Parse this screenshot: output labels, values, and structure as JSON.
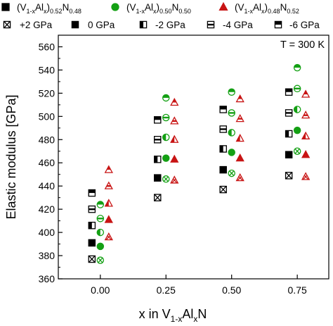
{
  "chart_data": {
    "type": "scatter",
    "xlabel": {
      "main": "x in V",
      "sub1": "1-x",
      "mid": "Al",
      "sub2": "x",
      "tail": "N"
    },
    "ylabel": "Elastic modulus [GPa]",
    "xlim": [
      -0.16,
      0.87
    ],
    "ylim": [
      360,
      570
    ],
    "xticks": [
      "0.00",
      "0.25",
      "0.50",
      "0.75"
    ],
    "xtick_values": [
      0.0,
      0.25,
      0.5,
      0.75
    ],
    "yticks": [
      360,
      380,
      400,
      420,
      440,
      460,
      480,
      500,
      520,
      540,
      560
    ],
    "grid": false,
    "annotation": "T = 300 K",
    "compositions": [
      {
        "name": {
          "pre": "(V",
          "s1": "1-x",
          "mid": "Al",
          "s2": "x",
          "post": ")",
          "s3": "0.52",
          "n": "N",
          "s4": "0.48"
        },
        "marker": "square",
        "color": "#000000"
      },
      {
        "name": {
          "pre": "(V",
          "s1": "1-x",
          "mid": "Al",
          "s2": "x",
          "post": ")",
          "s3": "0.50",
          "n": "N",
          "s4": "0.50"
        },
        "marker": "circle",
        "color": "#14a014"
      },
      {
        "name": {
          "pre": "(V",
          "s1": "1-x",
          "mid": "Al",
          "s2": "x",
          "post": ")",
          "s3": "0.48",
          "n": "N",
          "s4": "0.52"
        },
        "marker": "triangle",
        "color": "#c81414"
      }
    ],
    "pressures": [
      {
        "label": "+2 GPa",
        "fill": "cross"
      },
      {
        "label": "0 GPa",
        "fill": "full"
      },
      {
        "label": "-2 GPa",
        "fill": "left"
      },
      {
        "label": "-4 GPa",
        "fill": "bar"
      },
      {
        "label": "-6 GPa",
        "fill": "top"
      }
    ],
    "series": [
      {
        "x": 0.0,
        "composition": 0,
        "pressure": 0,
        "y": 377
      },
      {
        "x": 0.0,
        "composition": 0,
        "pressure": 1,
        "y": 391
      },
      {
        "x": 0.0,
        "composition": 0,
        "pressure": 2,
        "y": 406
      },
      {
        "x": 0.0,
        "composition": 0,
        "pressure": 3,
        "y": 420
      },
      {
        "x": 0.0,
        "composition": 0,
        "pressure": 4,
        "y": 434
      },
      {
        "x": 0.0,
        "composition": 1,
        "pressure": 0,
        "y": 376
      },
      {
        "x": 0.0,
        "composition": 1,
        "pressure": 1,
        "y": 388
      },
      {
        "x": 0.0,
        "composition": 1,
        "pressure": 2,
        "y": 400
      },
      {
        "x": 0.0,
        "composition": 1,
        "pressure": 3,
        "y": 412
      },
      {
        "x": 0.0,
        "composition": 1,
        "pressure": 4,
        "y": 424
      },
      {
        "x": 0.0,
        "composition": 2,
        "pressure": 0,
        "y": 396
      },
      {
        "x": 0.0,
        "composition": 2,
        "pressure": 1,
        "y": 411
      },
      {
        "x": 0.0,
        "composition": 2,
        "pressure": 2,
        "y": 425
      },
      {
        "x": 0.0,
        "composition": 2,
        "pressure": 3,
        "y": 440
      },
      {
        "x": 0.0,
        "composition": 2,
        "pressure": 4,
        "y": 454
      },
      {
        "x": 0.25,
        "composition": 0,
        "pressure": 0,
        "y": 430
      },
      {
        "x": 0.25,
        "composition": 0,
        "pressure": 1,
        "y": 447
      },
      {
        "x": 0.25,
        "composition": 0,
        "pressure": 2,
        "y": 463
      },
      {
        "x": 0.25,
        "composition": 0,
        "pressure": 3,
        "y": 480
      },
      {
        "x": 0.25,
        "composition": 0,
        "pressure": 4,
        "y": 497
      },
      {
        "x": 0.25,
        "composition": 1,
        "pressure": 0,
        "y": 446
      },
      {
        "x": 0.25,
        "composition": 1,
        "pressure": 1,
        "y": 464
      },
      {
        "x": 0.25,
        "composition": 1,
        "pressure": 2,
        "y": 482
      },
      {
        "x": 0.25,
        "composition": 1,
        "pressure": 3,
        "y": 499
      },
      {
        "x": 0.25,
        "composition": 1,
        "pressure": 4,
        "y": 516
      },
      {
        "x": 0.25,
        "composition": 2,
        "pressure": 0,
        "y": 445
      },
      {
        "x": 0.25,
        "composition": 2,
        "pressure": 1,
        "y": 463
      },
      {
        "x": 0.25,
        "composition": 2,
        "pressure": 2,
        "y": 480
      },
      {
        "x": 0.25,
        "composition": 2,
        "pressure": 3,
        "y": 496
      },
      {
        "x": 0.25,
        "composition": 2,
        "pressure": 4,
        "y": 512
      },
      {
        "x": 0.5,
        "composition": 0,
        "pressure": 0,
        "y": 437
      },
      {
        "x": 0.5,
        "composition": 0,
        "pressure": 1,
        "y": 454
      },
      {
        "x": 0.5,
        "composition": 0,
        "pressure": 2,
        "y": 472
      },
      {
        "x": 0.5,
        "composition": 0,
        "pressure": 3,
        "y": 489
      },
      {
        "x": 0.5,
        "composition": 0,
        "pressure": 4,
        "y": 506
      },
      {
        "x": 0.5,
        "composition": 1,
        "pressure": 0,
        "y": 451
      },
      {
        "x": 0.5,
        "composition": 1,
        "pressure": 1,
        "y": 469
      },
      {
        "x": 0.5,
        "composition": 1,
        "pressure": 2,
        "y": 486
      },
      {
        "x": 0.5,
        "composition": 1,
        "pressure": 3,
        "y": 503
      },
      {
        "x": 0.5,
        "composition": 1,
        "pressure": 4,
        "y": 521
      },
      {
        "x": 0.5,
        "composition": 2,
        "pressure": 0,
        "y": 447
      },
      {
        "x": 0.5,
        "composition": 2,
        "pressure": 1,
        "y": 464
      },
      {
        "x": 0.5,
        "composition": 2,
        "pressure": 2,
        "y": 481
      },
      {
        "x": 0.5,
        "composition": 2,
        "pressure": 3,
        "y": 498
      },
      {
        "x": 0.5,
        "composition": 2,
        "pressure": 4,
        "y": 515
      },
      {
        "x": 0.75,
        "composition": 0,
        "pressure": 0,
        "y": 449
      },
      {
        "x": 0.75,
        "composition": 0,
        "pressure": 1,
        "y": 467
      },
      {
        "x": 0.75,
        "composition": 0,
        "pressure": 2,
        "y": 485
      },
      {
        "x": 0.75,
        "composition": 0,
        "pressure": 3,
        "y": 503
      },
      {
        "x": 0.75,
        "composition": 0,
        "pressure": 4,
        "y": 521
      },
      {
        "x": 0.75,
        "composition": 1,
        "pressure": 0,
        "y": 470
      },
      {
        "x": 0.75,
        "composition": 1,
        "pressure": 1,
        "y": 488
      },
      {
        "x": 0.75,
        "composition": 1,
        "pressure": 2,
        "y": 506
      },
      {
        "x": 0.75,
        "composition": 1,
        "pressure": 3,
        "y": 524
      },
      {
        "x": 0.75,
        "composition": 1,
        "pressure": 4,
        "y": 542
      },
      {
        "x": 0.75,
        "composition": 2,
        "pressure": 0,
        "y": 448
      },
      {
        "x": 0.75,
        "composition": 2,
        "pressure": 1,
        "y": 467
      },
      {
        "x": 0.75,
        "composition": 2,
        "pressure": 2,
        "y": 483
      },
      {
        "x": 0.75,
        "composition": 2,
        "pressure": 3,
        "y": 501
      },
      {
        "x": 0.75,
        "composition": 2,
        "pressure": 4,
        "y": 519
      }
    ]
  }
}
